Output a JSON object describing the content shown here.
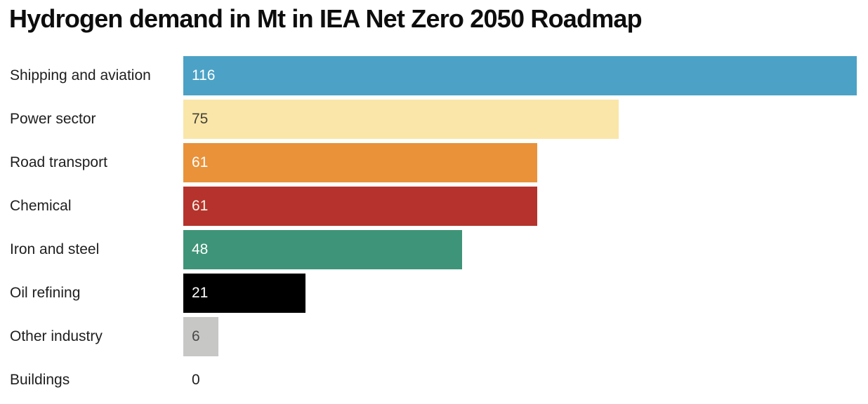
{
  "chart_data": {
    "type": "bar",
    "orientation": "horizontal",
    "title": "Hydrogen demand in Mt in IEA Net Zero 2050 Roadmap",
    "categories": [
      "Shipping and aviation",
      "Power sector",
      "Road transport",
      "Chemical",
      "Iron and steel",
      "Oil refining",
      "Other industry",
      "Buildings"
    ],
    "values": [
      116,
      75,
      61,
      61,
      48,
      21,
      6,
      0
    ],
    "bar_colors": [
      "#4BA2C6",
      "#FAE6A8",
      "#E9923A",
      "#B5332C",
      "#3E9478",
      "#000000",
      "#C7C7C6",
      "transparent"
    ],
    "value_label_colors": [
      "#FFFFFF",
      "#44423A",
      "#FFFFFF",
      "#F9F3E8",
      "#FFFFFF",
      "#FFFFFF",
      "#4A4A4A",
      "#1E1E1E"
    ],
    "xlim": [
      0,
      116
    ],
    "xlabel": "",
    "ylabel": "",
    "value_labels_shown": true,
    "grid": false,
    "legend": false,
    "background": "#FFFFFF",
    "title_color": "#0D0D0D",
    "category_label_color": "#1E1E1E"
  }
}
